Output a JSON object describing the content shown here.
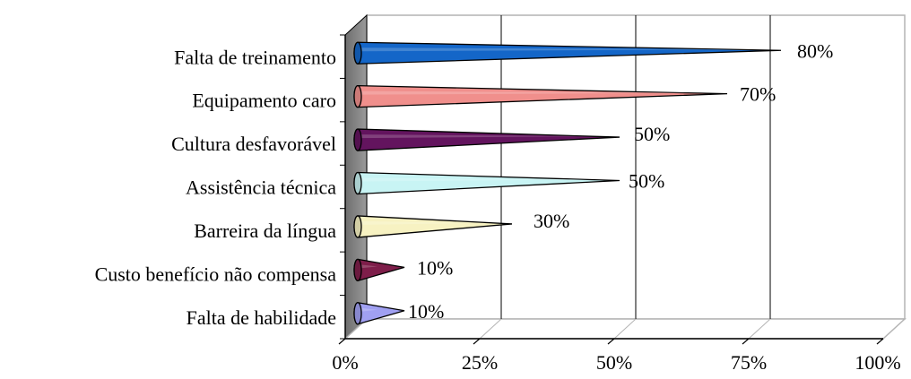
{
  "chart_data": {
    "type": "bar",
    "orientation": "horizontal",
    "style": "3d-cone",
    "categories": [
      "Falta de treinamento",
      "Equipamento caro",
      "Cultura desfavorável",
      "Assistência técnica",
      "Barreira da língua",
      "Custo benefício não compensa",
      "Falta de habilidade"
    ],
    "values": [
      80,
      70,
      50,
      50,
      30,
      10,
      10
    ],
    "data_labels": [
      "80%",
      "70%",
      "50%",
      "50%",
      "30%",
      "10%",
      "10%"
    ],
    "colors": [
      "#1466C8",
      "#F08F8C",
      "#63145E",
      "#C8F4F4",
      "#F7F2C2",
      "#7E1E4A",
      "#A0A0F2"
    ],
    "xlim": [
      0,
      100
    ],
    "x_ticks": [
      0,
      25,
      50,
      75,
      100
    ],
    "x_tick_labels": [
      "0%",
      "25%",
      "50%",
      "75%",
      "100%"
    ],
    "grid": true,
    "legend": "none",
    "title": "",
    "xlabel": "",
    "ylabel": ""
  }
}
